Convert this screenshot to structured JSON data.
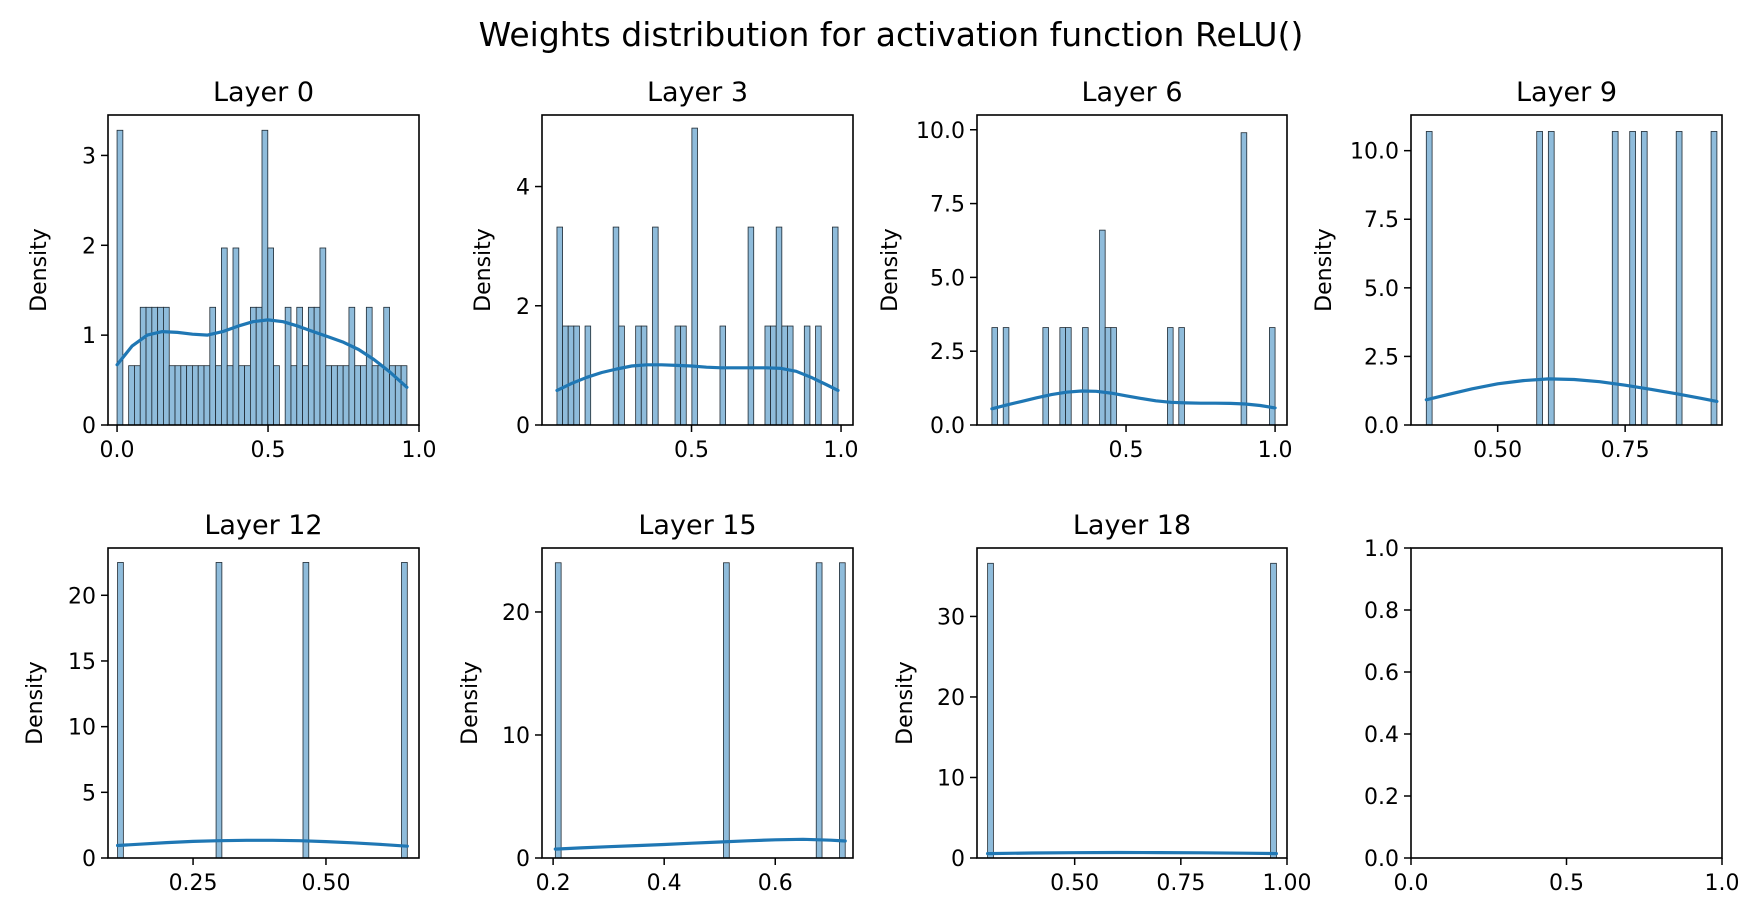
{
  "figure": {
    "title": "Weights distribution for activation function ReLU()"
  },
  "colors": {
    "bar_fill": "#8fbcdb",
    "bar_edge": "#1f2a33",
    "kde_line": "#1f77b4"
  },
  "chart_data": [
    {
      "type": "bar",
      "title": "Layer 0",
      "ylabel": "Density",
      "xlim": [
        -0.03,
        1.0
      ],
      "ylim": [
        0,
        3.45
      ],
      "xticks": [
        0.0,
        0.5,
        1.0
      ],
      "xtick_labels": [
        "0.0",
        "0.5",
        "1.0"
      ],
      "yticks": [
        0,
        1,
        2,
        3
      ],
      "ytick_labels": [
        "0",
        "1",
        "2",
        "3"
      ],
      "bin_range": [
        0.0,
        0.96
      ],
      "bins": 50,
      "values": [
        3.28,
        0,
        0.66,
        0.66,
        1.31,
        1.31,
        1.31,
        1.31,
        1.31,
        0.66,
        0.66,
        0.66,
        0.66,
        0.66,
        0.66,
        0.66,
        1.31,
        0.66,
        1.97,
        0.66,
        1.97,
        0.66,
        0.66,
        1.31,
        1.31,
        3.28,
        1.97,
        0.66,
        0,
        1.31,
        0.66,
        1.31,
        0.66,
        1.31,
        1.31,
        1.97,
        0.66,
        0.66,
        0.66,
        0.66,
        1.31,
        0.66,
        0.66,
        1.31,
        0.66,
        0.66,
        1.31,
        0.66,
        0.66,
        0.66
      ],
      "kde": [
        [
          0.0,
          0.67
        ],
        [
          0.05,
          0.88
        ],
        [
          0.1,
          1.0
        ],
        [
          0.15,
          1.04
        ],
        [
          0.2,
          1.03
        ],
        [
          0.25,
          1.01
        ],
        [
          0.3,
          1.0
        ],
        [
          0.35,
          1.04
        ],
        [
          0.4,
          1.1
        ],
        [
          0.45,
          1.15
        ],
        [
          0.5,
          1.17
        ],
        [
          0.55,
          1.15
        ],
        [
          0.6,
          1.1
        ],
        [
          0.65,
          1.04
        ],
        [
          0.7,
          0.98
        ],
        [
          0.75,
          0.92
        ],
        [
          0.8,
          0.84
        ],
        [
          0.85,
          0.73
        ],
        [
          0.9,
          0.6
        ],
        [
          0.96,
          0.42
        ]
      ]
    },
    {
      "type": "bar",
      "title": "Layer 3",
      "ylabel": "Density",
      "xlim": [
        0.0,
        1.04
      ],
      "ylim": [
        0,
        5.2
      ],
      "xticks": [
        0.5,
        1.0
      ],
      "xtick_labels": [
        "0.5",
        "1.0"
      ],
      "yticks": [
        0,
        2,
        4
      ],
      "ytick_labels": [
        "0",
        "2",
        "4"
      ],
      "bin_range": [
        0.05,
        0.99
      ],
      "bins": 50,
      "values": [
        3.32,
        1.66,
        1.66,
        1.66,
        0,
        1.66,
        0,
        0,
        0,
        0,
        3.32,
        1.66,
        0,
        0,
        1.66,
        1.66,
        0,
        3.32,
        0,
        0,
        0,
        1.66,
        1.66,
        0,
        4.98,
        0,
        0,
        0,
        0,
        1.66,
        0,
        0,
        0,
        0,
        3.32,
        0,
        0,
        1.66,
        1.66,
        3.32,
        1.66,
        1.66,
        0,
        0,
        1.66,
        0,
        1.66,
        0,
        0,
        3.32
      ],
      "kde": [
        [
          0.05,
          0.58
        ],
        [
          0.1,
          0.7
        ],
        [
          0.15,
          0.8
        ],
        [
          0.2,
          0.88
        ],
        [
          0.25,
          0.94
        ],
        [
          0.3,
          0.99
        ],
        [
          0.35,
          1.01
        ],
        [
          0.4,
          1.01
        ],
        [
          0.45,
          1.0
        ],
        [
          0.5,
          0.99
        ],
        [
          0.55,
          0.97
        ],
        [
          0.6,
          0.96
        ],
        [
          0.65,
          0.96
        ],
        [
          0.7,
          0.96
        ],
        [
          0.75,
          0.96
        ],
        [
          0.8,
          0.95
        ],
        [
          0.85,
          0.9
        ],
        [
          0.9,
          0.8
        ],
        [
          0.95,
          0.68
        ],
        [
          0.99,
          0.58
        ]
      ]
    },
    {
      "type": "bar",
      "title": "Layer 6",
      "ylabel": "Density",
      "xlim": [
        0.0,
        1.04
      ],
      "ylim": [
        0,
        10.5
      ],
      "xticks": [
        0.5,
        1.0
      ],
      "xtick_labels": [
        "0.5",
        "1.0"
      ],
      "yticks": [
        0,
        2.5,
        5.0,
        7.5,
        10.0
      ],
      "ytick_labels": [
        "0.0",
        "2.5",
        "5.0",
        "7.5",
        "10.0"
      ],
      "bin_range": [
        0.05,
        1.0
      ],
      "bins": 50,
      "values": [
        3.3,
        0,
        3.3,
        0,
        0,
        0,
        0,
        0,
        0,
        3.3,
        0,
        0,
        3.3,
        3.3,
        0,
        0,
        3.3,
        0,
        0,
        6.6,
        3.3,
        3.3,
        0,
        0,
        0,
        0,
        0,
        0,
        0,
        0,
        0,
        3.3,
        0,
        3.3,
        0,
        0,
        0,
        0,
        0,
        0,
        0,
        0,
        0,
        0,
        9.9,
        0,
        0,
        0,
        0,
        3.3
      ],
      "kde": [
        [
          0.05,
          0.55
        ],
        [
          0.1,
          0.68
        ],
        [
          0.15,
          0.8
        ],
        [
          0.2,
          0.92
        ],
        [
          0.25,
          1.03
        ],
        [
          0.3,
          1.11
        ],
        [
          0.35,
          1.15
        ],
        [
          0.4,
          1.14
        ],
        [
          0.45,
          1.08
        ],
        [
          0.5,
          0.99
        ],
        [
          0.55,
          0.9
        ],
        [
          0.6,
          0.82
        ],
        [
          0.65,
          0.77
        ],
        [
          0.7,
          0.75
        ],
        [
          0.75,
          0.74
        ],
        [
          0.8,
          0.74
        ],
        [
          0.85,
          0.73
        ],
        [
          0.9,
          0.71
        ],
        [
          0.95,
          0.66
        ],
        [
          1.0,
          0.58
        ]
      ]
    },
    {
      "type": "bar",
      "title": "Layer 9",
      "ylabel": "Density",
      "xlim": [
        0.33,
        0.94
      ],
      "ylim": [
        0,
        11.3
      ],
      "xticks": [
        0.5,
        0.75
      ],
      "xtick_labels": [
        "0.50",
        "0.75"
      ],
      "yticks": [
        0,
        2.5,
        5.0,
        7.5,
        10.0
      ],
      "ytick_labels": [
        "0.0",
        "2.5",
        "5.0",
        "7.5",
        "10.0"
      ],
      "bin_range": [
        0.36,
        0.93
      ],
      "bins": 50,
      "values": [
        10.7,
        0,
        0,
        0,
        0,
        0,
        0,
        0,
        0,
        0,
        0,
        0,
        0,
        0,
        0,
        0,
        0,
        0,
        0,
        10.7,
        0,
        10.7,
        0,
        0,
        0,
        0,
        0,
        0,
        0,
        0,
        0,
        0,
        10.7,
        0,
        0,
        10.7,
        0,
        10.7,
        0,
        0,
        0,
        0,
        0,
        0,
        0,
        0,
        0,
        0,
        0,
        10.7
      ],
      "extra_bars": [
        {
          "bin": 43,
          "value": 10.7
        }
      ],
      "kde": [
        [
          0.36,
          0.92
        ],
        [
          0.4,
          1.1
        ],
        [
          0.45,
          1.32
        ],
        [
          0.5,
          1.5
        ],
        [
          0.55,
          1.62
        ],
        [
          0.6,
          1.68
        ],
        [
          0.65,
          1.66
        ],
        [
          0.7,
          1.58
        ],
        [
          0.75,
          1.45
        ],
        [
          0.8,
          1.3
        ],
        [
          0.85,
          1.14
        ],
        [
          0.9,
          0.97
        ],
        [
          0.93,
          0.86
        ]
      ]
    },
    {
      "type": "bar",
      "title": "Layer 12",
      "ylabel": "Density",
      "xlim": [
        0.09,
        0.675
      ],
      "ylim": [
        0,
        23.6
      ],
      "xticks": [
        0.25,
        0.5
      ],
      "xtick_labels": [
        "0.25",
        "0.50"
      ],
      "yticks": [
        0,
        5,
        10,
        15,
        20
      ],
      "ytick_labels": [
        "0",
        "5",
        "10",
        "15",
        "20"
      ],
      "bin_range": [
        0.108,
        0.653
      ],
      "bins": 50,
      "values": [
        22.5,
        0,
        0,
        0,
        0,
        0,
        0,
        0,
        0,
        0,
        0,
        0,
        0,
        0,
        0,
        0,
        0,
        22.5,
        0,
        0,
        0,
        0,
        0,
        0,
        0,
        0,
        0,
        0,
        0,
        0,
        0,
        0,
        0,
        0,
        0,
        0,
        0,
        0,
        0,
        0,
        0,
        0,
        0,
        0,
        0,
        0,
        0,
        0,
        0,
        22.5
      ],
      "extra_bars": [
        {
          "bin": 32,
          "value": 22.5
        }
      ],
      "kde": [
        [
          0.108,
          0.95
        ],
        [
          0.15,
          1.05
        ],
        [
          0.2,
          1.17
        ],
        [
          0.25,
          1.26
        ],
        [
          0.3,
          1.32
        ],
        [
          0.35,
          1.35
        ],
        [
          0.4,
          1.35
        ],
        [
          0.45,
          1.32
        ],
        [
          0.5,
          1.25
        ],
        [
          0.55,
          1.16
        ],
        [
          0.6,
          1.04
        ],
        [
          0.653,
          0.9
        ]
      ]
    },
    {
      "type": "bar",
      "title": "Layer 15",
      "ylabel": "Density",
      "xlim": [
        0.18,
        0.74
      ],
      "ylim": [
        0,
        25.2
      ],
      "xticks": [
        0.2,
        0.4,
        0.6
      ],
      "xtick_labels": [
        "0.2",
        "0.4",
        "0.6"
      ],
      "yticks": [
        0,
        10,
        20
      ],
      "ytick_labels": [
        "0",
        "10",
        "20"
      ],
      "bin_range": [
        0.204,
        0.726
      ],
      "bins": 50,
      "values": [
        24.0,
        0,
        0,
        0,
        0,
        0,
        0,
        0,
        0,
        0,
        0,
        0,
        0,
        0,
        0,
        0,
        0,
        0,
        0,
        0,
        0,
        0,
        0,
        0,
        0,
        0,
        0,
        0,
        0,
        24.0,
        0,
        0,
        0,
        0,
        0,
        0,
        0,
        0,
        0,
        0,
        0,
        0,
        0,
        0,
        0,
        24.0,
        0,
        0,
        0,
        24.0
      ],
      "kde": [
        [
          0.204,
          0.72
        ],
        [
          0.25,
          0.82
        ],
        [
          0.3,
          0.92
        ],
        [
          0.35,
          1.01
        ],
        [
          0.4,
          1.1
        ],
        [
          0.45,
          1.2
        ],
        [
          0.5,
          1.3
        ],
        [
          0.55,
          1.4
        ],
        [
          0.6,
          1.48
        ],
        [
          0.65,
          1.52
        ],
        [
          0.7,
          1.45
        ],
        [
          0.726,
          1.38
        ]
      ]
    },
    {
      "type": "bar",
      "title": "Layer 18",
      "ylabel": "Density",
      "xlim": [
        0.27,
        1.0
      ],
      "ylim": [
        0,
        38.5
      ],
      "xticks": [
        0.5,
        0.75,
        1.0
      ],
      "xtick_labels": [
        "0.50",
        "0.75",
        "1.00"
      ],
      "yticks": [
        0,
        10,
        20,
        30
      ],
      "ytick_labels": [
        "0",
        "10",
        "20",
        "30"
      ],
      "bin_range": [
        0.295,
        0.975
      ],
      "bins": 50,
      "values": [
        36.6,
        0,
        0,
        0,
        0,
        0,
        0,
        0,
        0,
        0,
        0,
        0,
        0,
        0,
        0,
        0,
        0,
        0,
        0,
        0,
        0,
        0,
        0,
        0,
        0,
        0,
        0,
        0,
        0,
        0,
        0,
        0,
        0,
        0,
        0,
        0,
        0,
        0,
        0,
        0,
        0,
        0,
        0,
        0,
        0,
        0,
        0,
        0,
        0,
        36.6
      ],
      "kde": [
        [
          0.295,
          0.55
        ],
        [
          0.4,
          0.62
        ],
        [
          0.5,
          0.66
        ],
        [
          0.6,
          0.68
        ],
        [
          0.7,
          0.67
        ],
        [
          0.8,
          0.64
        ],
        [
          0.9,
          0.6
        ],
        [
          0.975,
          0.55
        ]
      ]
    },
    {
      "type": "empty",
      "xlim": [
        0.0,
        1.0
      ],
      "ylim": [
        0.0,
        1.0
      ],
      "xticks": [
        0.0,
        0.5,
        1.0
      ],
      "xtick_labels": [
        "0.0",
        "0.5",
        "1.0"
      ],
      "yticks": [
        0.0,
        0.2,
        0.4,
        0.6,
        0.8,
        1.0
      ],
      "ytick_labels": [
        "0.0",
        "0.2",
        "0.4",
        "0.6",
        "0.8",
        "1.0"
      ]
    }
  ]
}
